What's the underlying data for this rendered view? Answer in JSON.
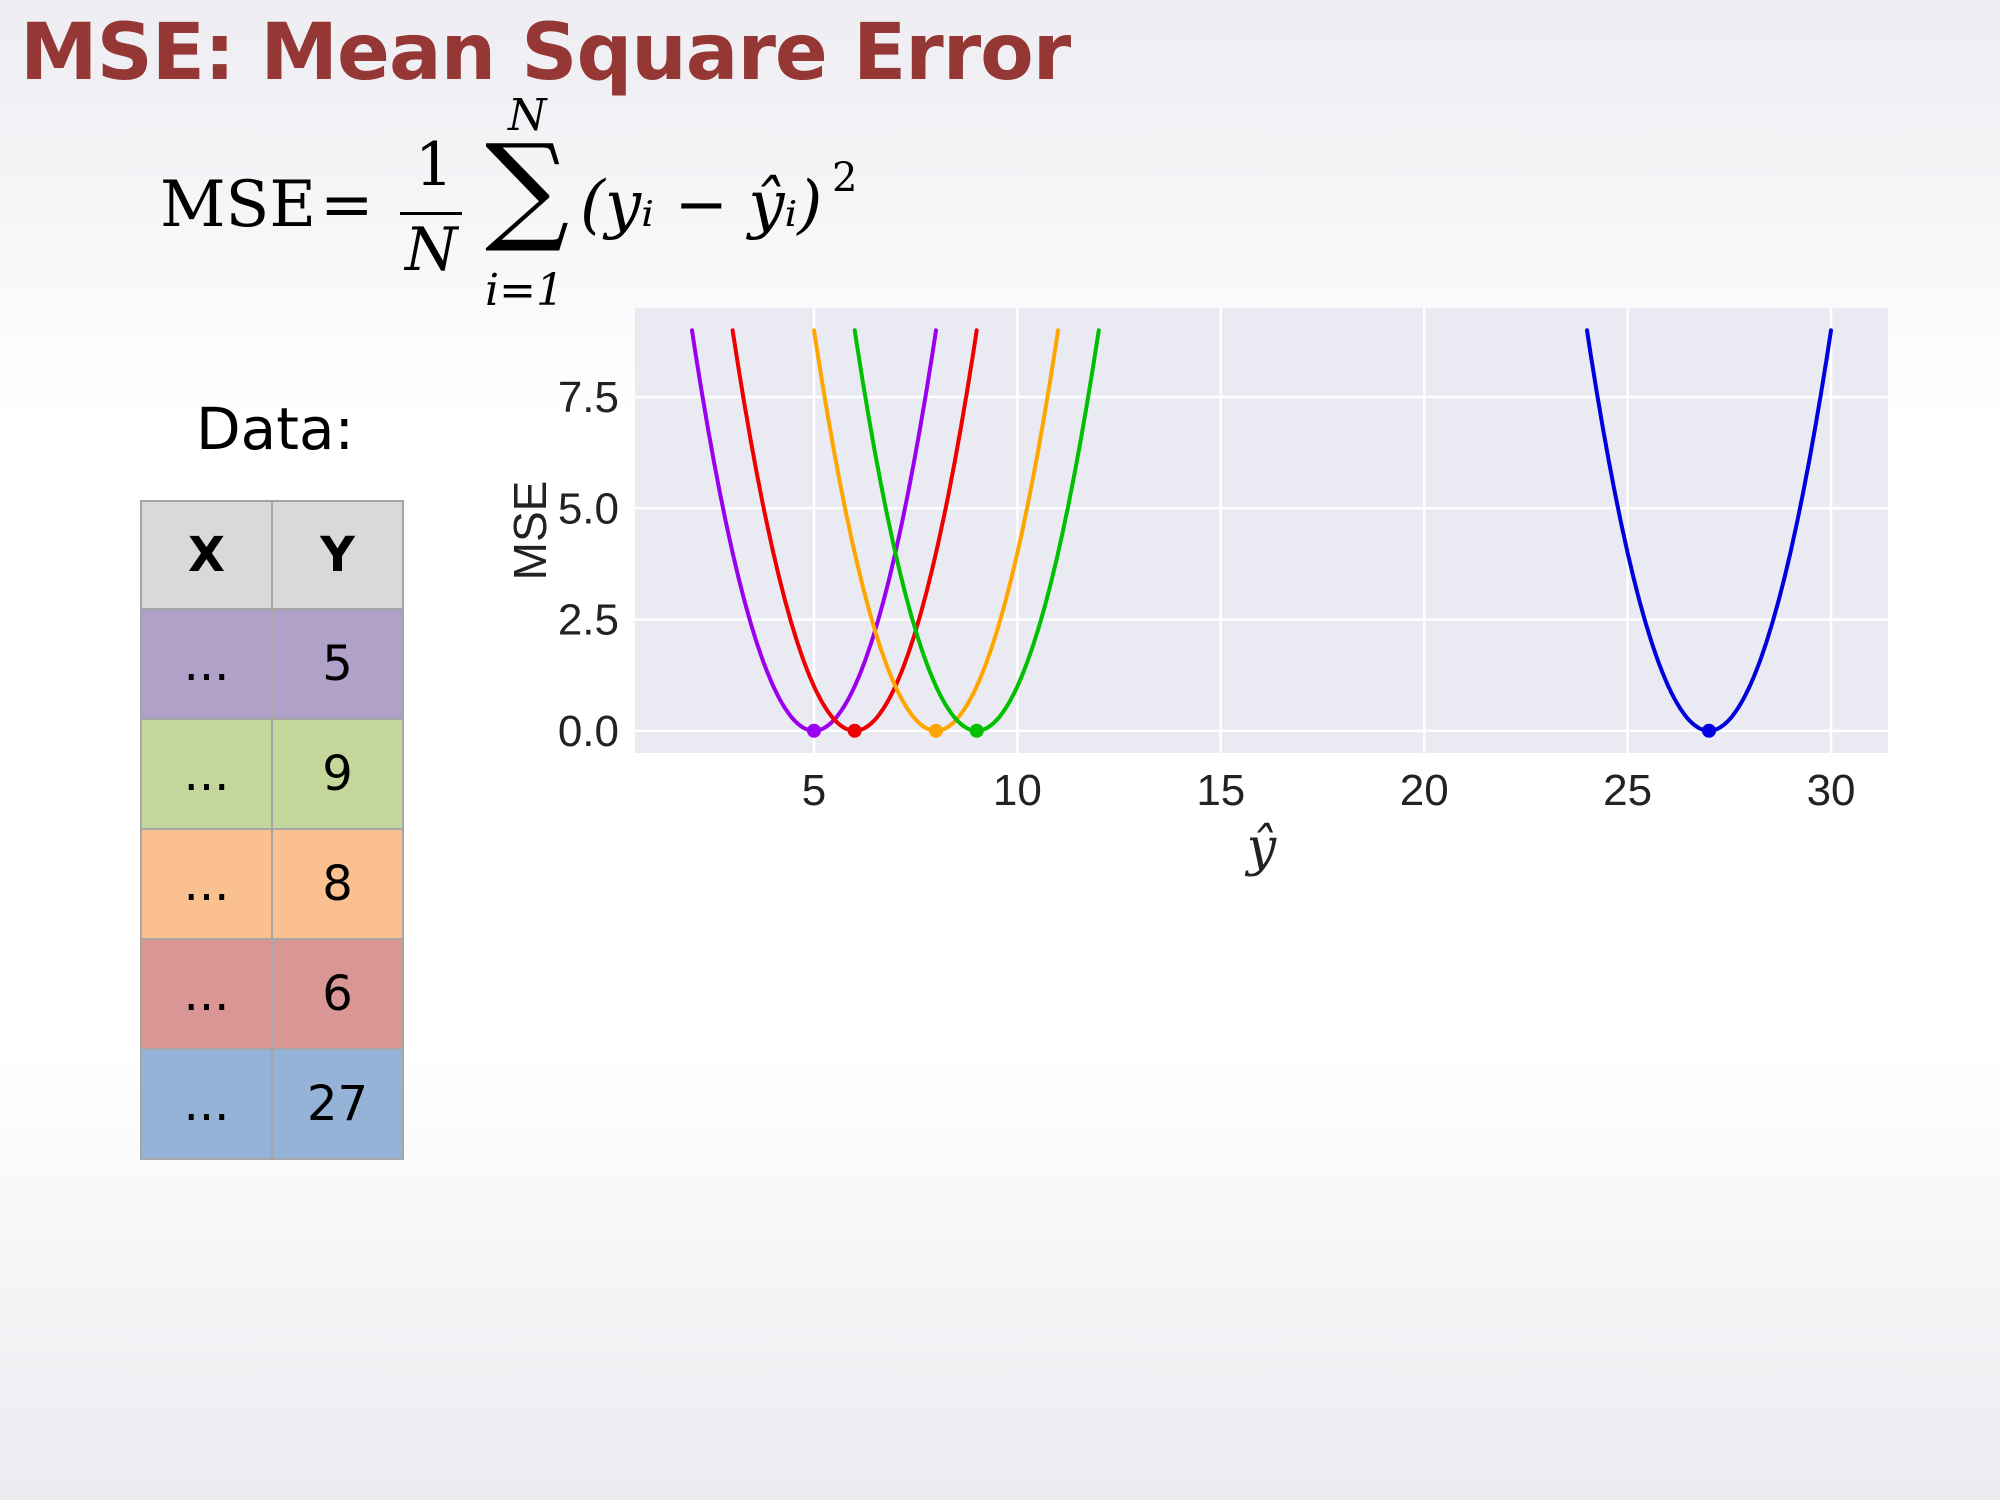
{
  "slide": {
    "title": "MSE: Mean Square Error",
    "data_label": "Data:"
  },
  "formula": {
    "lhs": "MSE",
    "equals": "=",
    "numerator": "1",
    "denominator": "N",
    "sum_symbol": "∑",
    "sum_upper": "N",
    "sum_lower": "i=1",
    "summand": "(yᵢ − ŷᵢ)",
    "exponent": "2"
  },
  "table": {
    "headers": [
      "X",
      "Y"
    ],
    "rows": [
      {
        "x": "...",
        "y": "5",
        "color": "#b1a0c7"
      },
      {
        "x": "...",
        "y": "9",
        "color": "#c4d79b"
      },
      {
        "x": "...",
        "y": "8",
        "color": "#fac090"
      },
      {
        "x": "...",
        "y": "6",
        "color": "#da9694"
      },
      {
        "x": "...",
        "y": "27",
        "color": "#95b3d7"
      }
    ]
  },
  "chart_data": {
    "type": "line",
    "xlabel": "ŷ",
    "ylabel": "MSE",
    "xlim": [
      0.6,
      31.4
    ],
    "ylim": [
      -0.5,
      9.5
    ],
    "xticks": [
      5,
      10,
      15,
      20,
      25,
      30
    ],
    "yticks": [
      0.0,
      2.5,
      5.0,
      7.5
    ],
    "grid": true,
    "background": "#eaeaf2",
    "series": [
      {
        "y": 5,
        "x_range": [
          2,
          8
        ],
        "min_point": [
          5,
          0
        ],
        "color": "#9b00ee"
      },
      {
        "y": 6,
        "x_range": [
          3,
          9
        ],
        "min_point": [
          6,
          0
        ],
        "color": "#ee0000"
      },
      {
        "y": 8,
        "x_range": [
          5,
          11
        ],
        "min_point": [
          8,
          0
        ],
        "color": "#ffa500"
      },
      {
        "y": 9,
        "x_range": [
          6,
          12
        ],
        "min_point": [
          9,
          0
        ],
        "color": "#00c000"
      },
      {
        "y": 27,
        "x_range": [
          24,
          30
        ],
        "min_point": [
          27,
          0
        ],
        "color": "#0000dd"
      }
    ]
  }
}
